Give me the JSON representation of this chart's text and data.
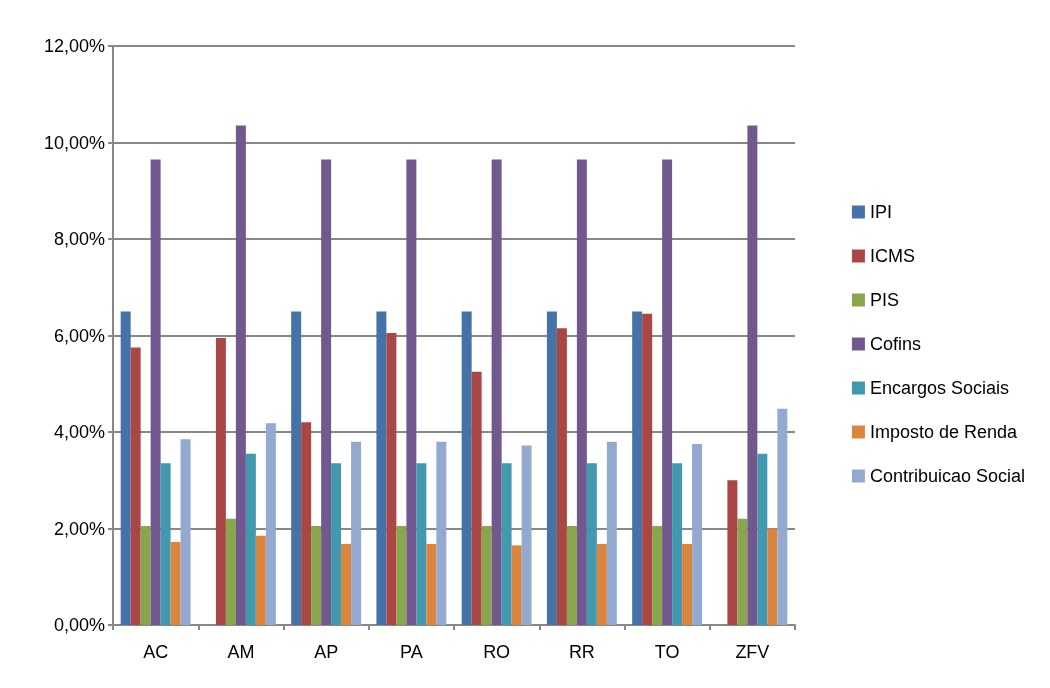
{
  "chart_data": {
    "type": "bar",
    "categories": [
      "AC",
      "AM",
      "AP",
      "PA",
      "RO",
      "RR",
      "TO",
      "ZFV"
    ],
    "series": [
      {
        "name": "IPI",
        "color": "#4572a7",
        "values": [
          6.5,
          null,
          6.5,
          6.5,
          6.5,
          6.5,
          6.5,
          null
        ]
      },
      {
        "name": "ICMS",
        "color": "#aa4643",
        "values": [
          5.75,
          5.95,
          4.2,
          6.05,
          5.25,
          6.15,
          6.45,
          3.0
        ]
      },
      {
        "name": "PIS",
        "color": "#89a54e",
        "values": [
          2.05,
          2.2,
          2.05,
          2.05,
          2.05,
          2.05,
          2.05,
          2.2
        ]
      },
      {
        "name": "Cofins",
        "color": "#71588f",
        "values": [
          9.65,
          10.35,
          9.65,
          9.65,
          9.65,
          9.65,
          9.65,
          10.35
        ]
      },
      {
        "name": "Encargos Sociais",
        "color": "#4198af",
        "values": [
          3.35,
          3.55,
          3.35,
          3.35,
          3.35,
          3.35,
          3.35,
          3.55
        ]
      },
      {
        "name": "Imposto de Renda",
        "color": "#db843d",
        "values": [
          1.72,
          1.85,
          1.68,
          1.68,
          1.65,
          1.68,
          1.68,
          2.0
        ]
      },
      {
        "name": "Contribuicao Social",
        "color": "#93a9cf",
        "values": [
          3.85,
          4.18,
          3.8,
          3.8,
          3.72,
          3.8,
          3.75,
          4.48
        ]
      }
    ],
    "ylim": [
      0,
      12
    ],
    "yticks": [
      {
        "value": 0,
        "label": "0,00%"
      },
      {
        "value": 2,
        "label": "2,00%"
      },
      {
        "value": 4,
        "label": "4,00%"
      },
      {
        "value": 6,
        "label": "6,00%"
      },
      {
        "value": 8,
        "label": "8,00%"
      },
      {
        "value": 10,
        "label": "10,00%"
      },
      {
        "value": 12,
        "label": "12,00%"
      }
    ],
    "grid": "y",
    "legend": "right"
  }
}
